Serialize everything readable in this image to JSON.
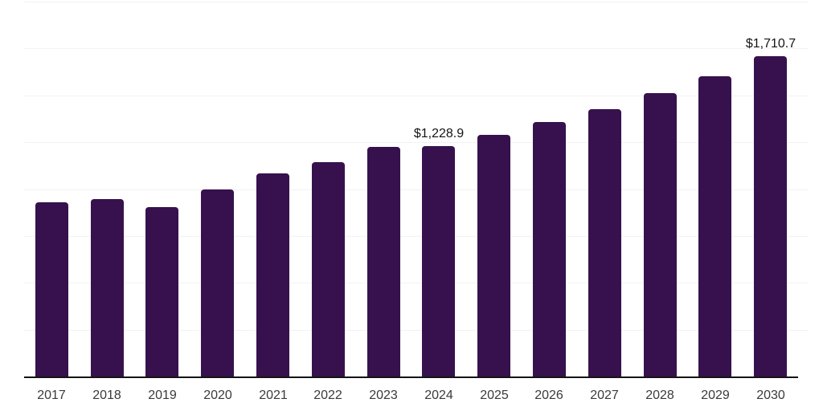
{
  "chart_data": {
    "type": "bar",
    "title": "",
    "xlabel": "",
    "ylabel": "",
    "categories": [
      "2017",
      "2018",
      "2019",
      "2020",
      "2021",
      "2022",
      "2023",
      "2024",
      "2025",
      "2026",
      "2027",
      "2028",
      "2029",
      "2030"
    ],
    "values": [
      930.9,
      947.9,
      902.2,
      997.5,
      1083.0,
      1144.6,
      1222.8,
      1228.9,
      1290.0,
      1356.7,
      1428.1,
      1510.6,
      1603.4,
      1710.7
    ],
    "value_labels": [
      {
        "category": "2024",
        "text": "$1,228.9"
      },
      {
        "category": "2030",
        "text": "$1,710.7"
      }
    ],
    "ylim": [
      0,
      2000
    ],
    "gridline_step": 250,
    "grid": true,
    "legend": "none",
    "y_tick_labels_visible": false,
    "colors": {
      "bar": "#37114d",
      "axis_line": "#141414",
      "gridline": "#f2f2f2",
      "value_label": "#141414",
      "tick_label": "#3a3a3a",
      "background": "#ffffff"
    }
  }
}
